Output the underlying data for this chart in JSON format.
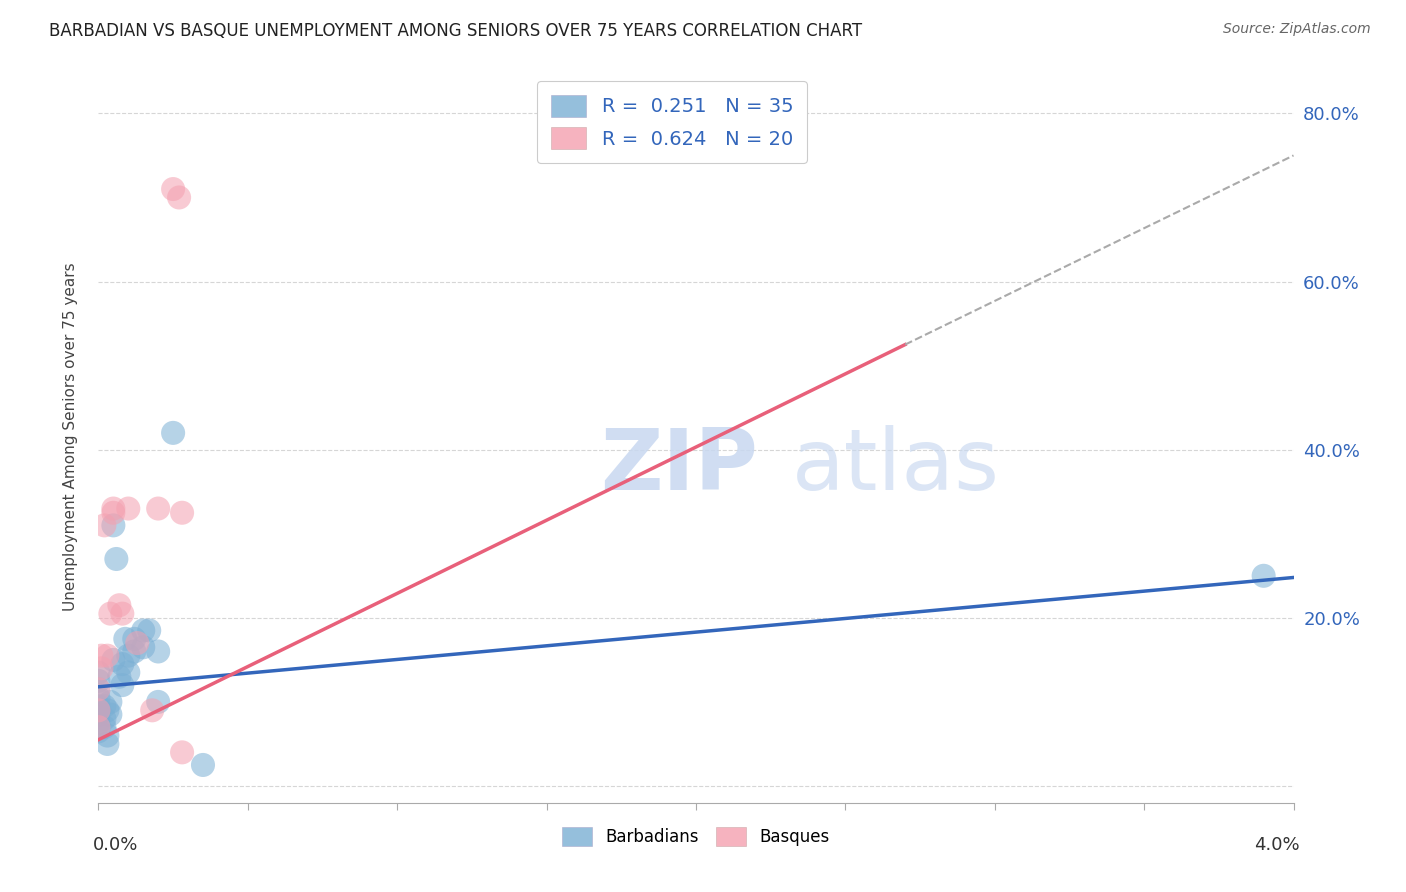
{
  "title": "BARBADIAN VS BASQUE UNEMPLOYMENT AMONG SENIORS OVER 75 YEARS CORRELATION CHART",
  "source": "Source: ZipAtlas.com",
  "ylabel": "Unemployment Among Seniors over 75 years",
  "xlim": [
    0.0,
    0.04
  ],
  "ylim": [
    -0.02,
    0.85
  ],
  "watermark_zip": "ZIP",
  "watermark_atlas": "atlas",
  "barbadian_color": "#7BAFD4",
  "basque_color": "#F4A0B0",
  "barbadian_line_color": "#3366BB",
  "basque_line_color": "#E8607A",
  "barbadian_R": "0.251",
  "barbadian_N": "35",
  "basque_R": "0.624",
  "basque_N": "20",
  "barbadian_points": [
    [
      0.0,
      0.115
    ],
    [
      0.0,
      0.095
    ],
    [
      0.0,
      0.105
    ],
    [
      0.0,
      0.085
    ],
    [
      0.0,
      0.075
    ],
    [
      0.0,
      0.065
    ],
    [
      0.0,
      0.135
    ],
    [
      0.0,
      0.125
    ],
    [
      0.0002,
      0.095
    ],
    [
      0.0002,
      0.08
    ],
    [
      0.0002,
      0.07
    ],
    [
      0.0003,
      0.09
    ],
    [
      0.0003,
      0.06
    ],
    [
      0.0003,
      0.05
    ],
    [
      0.0004,
      0.085
    ],
    [
      0.0004,
      0.1
    ],
    [
      0.0005,
      0.31
    ],
    [
      0.0005,
      0.15
    ],
    [
      0.0006,
      0.27
    ],
    [
      0.0007,
      0.13
    ],
    [
      0.0008,
      0.145
    ],
    [
      0.0008,
      0.12
    ],
    [
      0.0009,
      0.175
    ],
    [
      0.001,
      0.155
    ],
    [
      0.001,
      0.135
    ],
    [
      0.0012,
      0.175
    ],
    [
      0.0012,
      0.16
    ],
    [
      0.0015,
      0.185
    ],
    [
      0.0015,
      0.165
    ],
    [
      0.0017,
      0.185
    ],
    [
      0.002,
      0.16
    ],
    [
      0.002,
      0.1
    ],
    [
      0.0025,
      0.42
    ],
    [
      0.0035,
      0.025
    ],
    [
      0.039,
      0.25
    ]
  ],
  "basque_points": [
    [
      0.0,
      0.115
    ],
    [
      0.0,
      0.09
    ],
    [
      0.0,
      0.07
    ],
    [
      0.0001,
      0.155
    ],
    [
      0.0001,
      0.14
    ],
    [
      0.0002,
      0.31
    ],
    [
      0.0003,
      0.155
    ],
    [
      0.0004,
      0.205
    ],
    [
      0.0005,
      0.325
    ],
    [
      0.0005,
      0.33
    ],
    [
      0.0007,
      0.215
    ],
    [
      0.0008,
      0.205
    ],
    [
      0.001,
      0.33
    ],
    [
      0.0013,
      0.17
    ],
    [
      0.0018,
      0.09
    ],
    [
      0.002,
      0.33
    ],
    [
      0.0025,
      0.71
    ],
    [
      0.0027,
      0.7
    ],
    [
      0.0028,
      0.325
    ],
    [
      0.0028,
      0.04
    ]
  ],
  "barbadian_line": [
    [
      0.0,
      0.118
    ],
    [
      0.04,
      0.248
    ]
  ],
  "basque_line_solid": [
    [
      0.0,
      0.055
    ],
    [
      0.027,
      0.525
    ]
  ],
  "basque_line_dashed": [
    [
      0.027,
      0.525
    ],
    [
      0.04,
      0.75
    ]
  ],
  "yticks": [
    0.0,
    0.2,
    0.4,
    0.6,
    0.8
  ],
  "ytick_labels": [
    "",
    "20.0%",
    "40.0%",
    "60.0%",
    "80.0%"
  ],
  "xtick_vals": [
    0.0,
    0.005,
    0.01,
    0.015,
    0.02,
    0.025,
    0.03,
    0.035,
    0.04
  ],
  "background_color": "#FFFFFF",
  "grid_color": "#CCCCCC"
}
